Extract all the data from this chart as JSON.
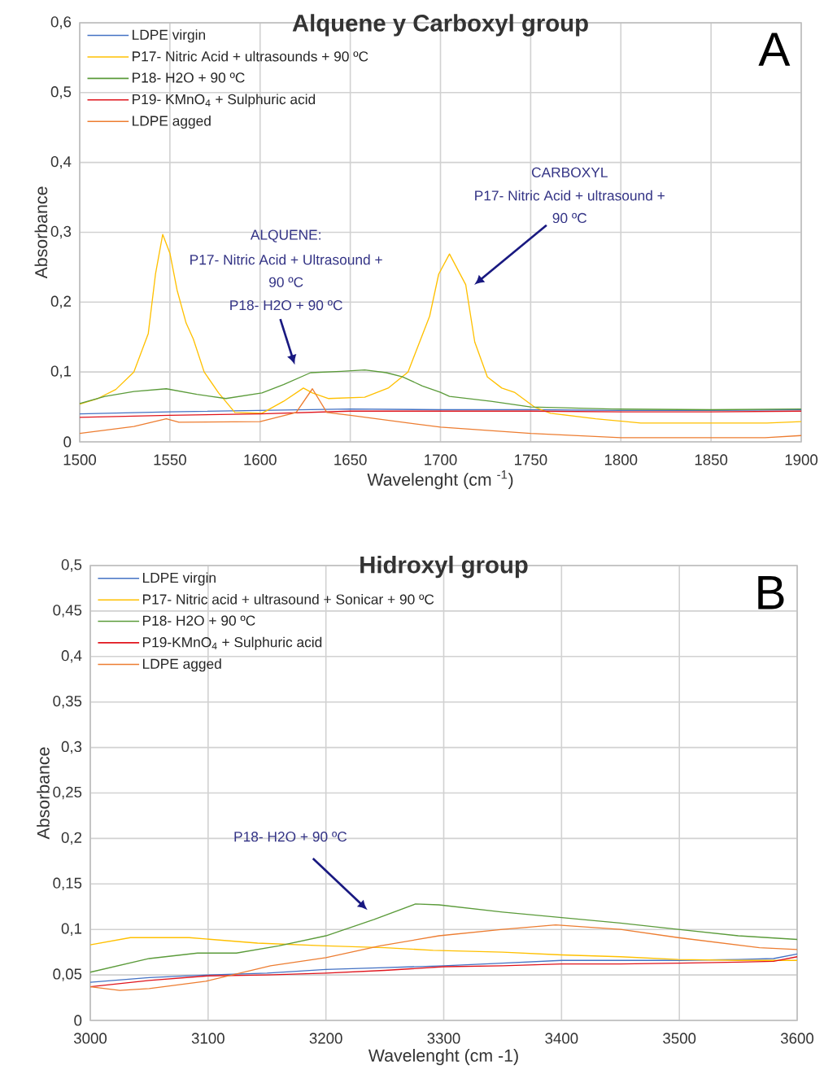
{
  "chart_data": [
    {
      "type": "line",
      "title": "Alquene y Carboxyl group",
      "xlabel": "Wavelenght (cm $^{-1}$)",
      "ylabel": "Absorbance",
      "annotations": [
        "A",
        "ALQUENE:",
        "P17- Nitric Acid + Ultrasound +",
        "90 ºC",
        "P18- H2O + 90 ºC",
        "CARBOXYL",
        "P17- Nitric Acid + ultrasound +",
        "90 ºC"
      ],
      "xlim": [
        1500,
        1900
      ],
      "ylim": [
        0,
        0.6
      ],
      "xticks": [
        1500,
        1550,
        1600,
        1650,
        1700,
        1750,
        1800,
        1850,
        1900
      ],
      "yticks": [
        0,
        {
          "value": 0.1,
          "label": "0,1"
        },
        {
          "value": 0.2,
          "label": "0,2"
        },
        {
          "value": 0.3,
          "label": "0,3"
        },
        {
          "value": 0.4,
          "label": "0,4"
        },
        {
          "value": 0.5,
          "label": "0,5"
        },
        {
          "value": 0.6,
          "label": "0,6"
        }
      ],
      "grid": true,
      "legend": "top left",
      "series": [
        {
          "name": "LDPE virgin",
          "color": "#4472c4",
          "x": [
            1500,
            1550,
            1600,
            1650,
            1700,
            1750,
            1800,
            1850,
            1900
          ],
          "values": [
            0.04,
            0.043,
            0.045,
            0.047,
            0.046,
            0.046,
            0.045,
            0.045,
            0.046
          ]
        },
        {
          "name": "P17- Nitric Acid + ultrasounds + 90 ºC",
          "color": "#ffc000",
          "x": [
            1500,
            1510,
            1520,
            1530,
            1538,
            1542,
            1546,
            1550,
            1554,
            1559,
            1563,
            1569,
            1577,
            1586,
            1601,
            1613,
            1624,
            1629,
            1638,
            1658,
            1671,
            1682,
            1694,
            1699,
            1705,
            1714,
            1719,
            1726,
            1734,
            1741,
            1752,
            1761,
            1786,
            1811,
            1850,
            1881,
            1900
          ],
          "values": [
            0.054,
            0.062,
            0.075,
            0.1,
            0.155,
            0.24,
            0.297,
            0.27,
            0.217,
            0.17,
            0.147,
            0.1,
            0.07,
            0.042,
            0.041,
            0.058,
            0.077,
            0.07,
            0.062,
            0.064,
            0.077,
            0.1,
            0.18,
            0.24,
            0.269,
            0.225,
            0.143,
            0.093,
            0.077,
            0.071,
            0.05,
            0.041,
            0.033,
            0.027,
            0.027,
            0.027,
            0.029
          ]
        },
        {
          "name": "P18- H2O + 90 ºC",
          "color": "#5b9b3a",
          "x": [
            1500,
            1514,
            1530,
            1548,
            1565,
            1581,
            1601,
            1613,
            1628,
            1645,
            1658,
            1670,
            1679,
            1690,
            1700,
            1705,
            1728,
            1750,
            1795,
            1850,
            1900
          ],
          "values": [
            0.055,
            0.065,
            0.072,
            0.076,
            0.068,
            0.062,
            0.07,
            0.082,
            0.099,
            0.101,
            0.103,
            0.099,
            0.093,
            0.08,
            0.071,
            0.065,
            0.058,
            0.05,
            0.047,
            0.046,
            0.047
          ]
        },
        {
          "name": "P19- KMnO$_{4}$ + Sulphuric acid",
          "color": "#e0141c",
          "x": [
            1500,
            1550,
            1600,
            1650,
            1700,
            1750,
            1800,
            1850,
            1900
          ],
          "values": [
            0.035,
            0.038,
            0.04,
            0.044,
            0.044,
            0.044,
            0.043,
            0.043,
            0.044
          ]
        },
        {
          "name": "LDPE agged",
          "color": "#ed7d31",
          "x": [
            1500,
            1530,
            1548,
            1555,
            1600,
            1620,
            1629,
            1637,
            1650,
            1700,
            1750,
            1800,
            1880,
            1900
          ],
          "values": [
            0.012,
            0.022,
            0.033,
            0.028,
            0.029,
            0.042,
            0.076,
            0.042,
            0.038,
            0.021,
            0.012,
            0.006,
            0.006,
            0.009
          ]
        }
      ]
    },
    {
      "type": "line",
      "title": "Hidroxyl group",
      "xlabel": "Wavelenght (cm -1)",
      "ylabel": "Absorbance",
      "annotations": [
        "B",
        "P18- H2O + 90 ºC"
      ],
      "xlim": [
        3000,
        3600
      ],
      "ylim": [
        0,
        0.5
      ],
      "xticks": [
        3000,
        3100,
        3200,
        3300,
        3400,
        3500,
        3600
      ],
      "yticks": [
        0,
        {
          "value": 0.05,
          "label": "0,05"
        },
        {
          "value": 0.1,
          "label": "0,1"
        },
        {
          "value": 0.15,
          "label": "0,15"
        },
        {
          "value": 0.2,
          "label": "0,2"
        },
        {
          "value": 0.25,
          "label": "0,25"
        },
        {
          "value": 0.3,
          "label": "0,3"
        },
        {
          "value": 0.35,
          "label": "0,35"
        },
        {
          "value": 0.4,
          "label": "0,4"
        },
        {
          "value": 0.45,
          "label": "0,45"
        },
        {
          "value": 0.5,
          "label": "0,5"
        }
      ],
      "grid": true,
      "legend": "top left",
      "series": [
        {
          "name": "LDPE virgin",
          "color": "#4472c4",
          "x": [
            3000,
            3050,
            3100,
            3150,
            3200,
            3250,
            3300,
            3350,
            3400,
            3450,
            3500,
            3550,
            3580,
            3600
          ],
          "values": [
            0.042,
            0.047,
            0.05,
            0.052,
            0.056,
            0.058,
            0.06,
            0.063,
            0.066,
            0.066,
            0.066,
            0.067,
            0.068,
            0.073
          ]
        },
        {
          "name": "P17- Nitric acid + ultrasound + Sonicar + 90 ºC",
          "color": "#ffc000",
          "x": [
            3000,
            3034,
            3084,
            3142,
            3200,
            3250,
            3291,
            3350,
            3400,
            3450,
            3499,
            3550,
            3600
          ],
          "values": [
            0.083,
            0.091,
            0.091,
            0.085,
            0.082,
            0.08,
            0.077,
            0.075,
            0.072,
            0.07,
            0.067,
            0.066,
            0.066
          ]
        },
        {
          "name": "P18- H2O + 90 ºC",
          "color": "#5b9b3a",
          "x": [
            3000,
            3050,
            3091,
            3124,
            3160,
            3200,
            3241,
            3276,
            3296,
            3350,
            3400,
            3450,
            3499,
            3550,
            3600
          ],
          "values": [
            0.053,
            0.068,
            0.074,
            0.074,
            0.082,
            0.093,
            0.111,
            0.128,
            0.127,
            0.119,
            0.113,
            0.107,
            0.1,
            0.093,
            0.089
          ]
        },
        {
          "name": "P19-KMnO$_{4}$ + Sulphuric acid",
          "color": "#e0141c",
          "x": [
            3000,
            3050,
            3100,
            3150,
            3200,
            3250,
            3300,
            3350,
            3400,
            3450,
            3500,
            3550,
            3580,
            3600
          ],
          "values": [
            0.037,
            0.044,
            0.049,
            0.05,
            0.052,
            0.055,
            0.059,
            0.06,
            0.062,
            0.062,
            0.063,
            0.064,
            0.065,
            0.07
          ]
        },
        {
          "name": "LDPE agged",
          "color": "#ed7d31",
          "x": [
            3000,
            3025,
            3050,
            3098,
            3153,
            3200,
            3246,
            3296,
            3350,
            3395,
            3450,
            3499,
            3568,
            3600
          ],
          "values": [
            0.037,
            0.033,
            0.035,
            0.043,
            0.06,
            0.069,
            0.082,
            0.093,
            0.1,
            0.105,
            0.1,
            0.091,
            0.08,
            0.078
          ]
        }
      ]
    }
  ]
}
